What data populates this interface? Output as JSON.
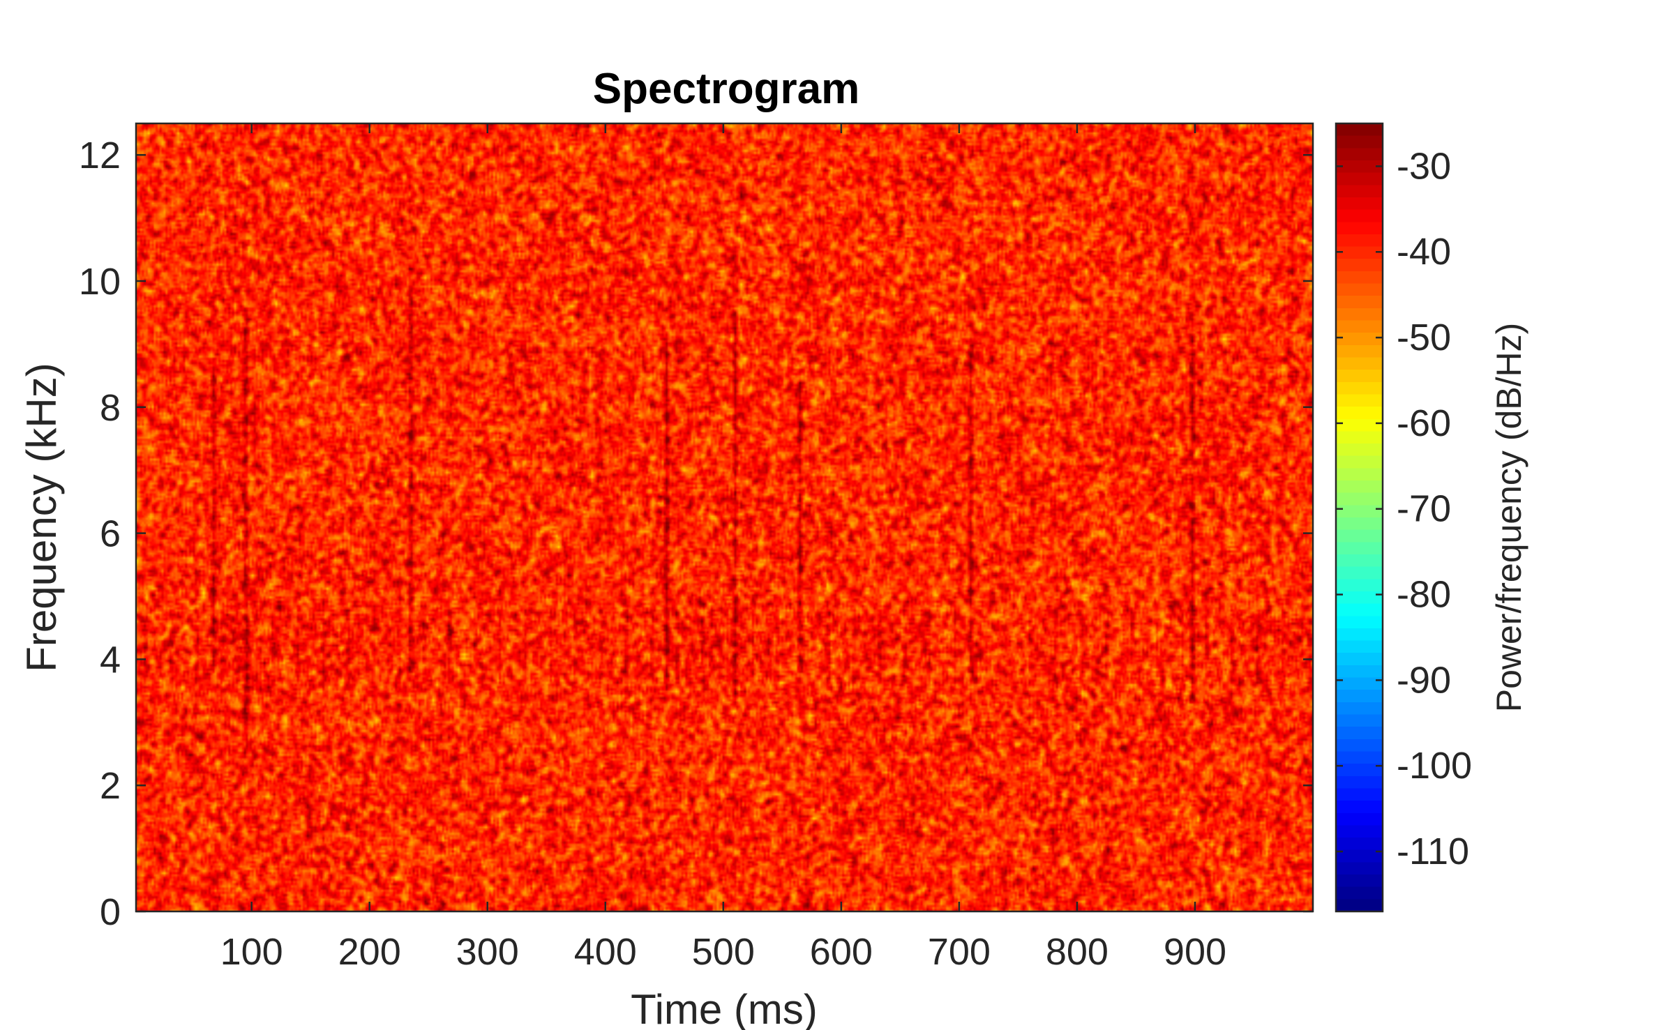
{
  "chart_data": {
    "type": "heatmap",
    "title": "Spectrogram",
    "xlabel": "Time (ms)",
    "ylabel": "Frequency (kHz)",
    "xlim": [
      2,
      1000
    ],
    "ylim": [
      0,
      12.5
    ],
    "xticks": [
      100,
      200,
      300,
      400,
      500,
      600,
      700,
      800,
      900
    ],
    "xtick_labels": [
      "100",
      "200",
      "300",
      "400",
      "500",
      "600",
      "700",
      "800",
      "900"
    ],
    "yticks": [
      0,
      2,
      4,
      6,
      8,
      10,
      12
    ],
    "ytick_labels": [
      "0",
      "2",
      "4",
      "6",
      "8",
      "10",
      "12"
    ],
    "colormap": "jet",
    "colorbar": {
      "label": "Power/frequency (dB/Hz)",
      "range": [
        -117,
        -25
      ],
      "ticks": [
        -30,
        -40,
        -50,
        -60,
        -70,
        -80,
        -90,
        -100,
        -110
      ],
      "tick_labels": [
        "-30",
        "-40",
        "-50",
        "-60",
        "-70",
        "-80",
        "-90",
        "-100",
        "-110"
      ]
    },
    "background_level_db": -40,
    "transients": [
      {
        "time_ms": 68,
        "freq_low_khz": 3.8,
        "freq_high_khz": 8.8
      },
      {
        "time_ms": 95,
        "freq_low_khz": 2.5,
        "freq_high_khz": 9.6
      },
      {
        "time_ms": 235,
        "freq_low_khz": 3.8,
        "freq_high_khz": 10.2
      },
      {
        "time_ms": 452,
        "freq_low_khz": 3.5,
        "freq_high_khz": 9.2
      },
      {
        "time_ms": 510,
        "freq_low_khz": 3.3,
        "freq_high_khz": 9.5
      },
      {
        "time_ms": 565,
        "freq_low_khz": 3.8,
        "freq_high_khz": 8.4
      },
      {
        "time_ms": 710,
        "freq_low_khz": 3.8,
        "freq_high_khz": 9.0
      },
      {
        "time_ms": 898,
        "freq_low_khz": 3.3,
        "freq_high_khz": 9.5
      }
    ]
  }
}
